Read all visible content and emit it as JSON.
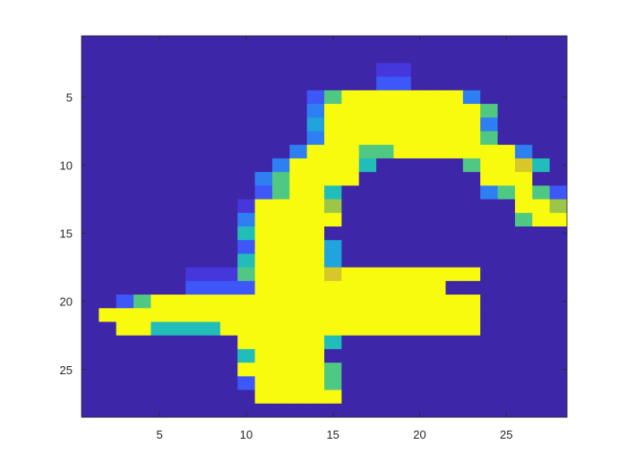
{
  "chart_data": {
    "type": "heatmap",
    "title": "",
    "xlabel": "",
    "ylabel": "",
    "x_range": [
      1,
      28
    ],
    "y_range": [
      1,
      28
    ],
    "x_direction": "normal",
    "y_direction": "reversed",
    "x_ticks": [
      5,
      10,
      15,
      20,
      25
    ],
    "y_ticks": [
      5,
      10,
      15,
      20,
      25
    ],
    "x_tick_labels": [
      "5",
      "10",
      "15",
      "20",
      "25"
    ],
    "y_tick_labels": [
      "5",
      "10",
      "15",
      "20",
      "25"
    ],
    "grid": false,
    "colormap": "parula",
    "value_range": [
      0,
      1
    ],
    "colors": {
      "background_low": "#3e26a8",
      "axis": "#262626"
    },
    "values": [
      "0000000000000000000000000000",
      "0000000000000000000000000000",
      "0000000000000000011000000000",
      "0000000000000000022000000000",
      "0000000000000269999999300000",
      "0000000000000399999999960000",
      "0000000000000499999999930000",
      "0000000000000399999999960000",
      "0000000000003999669999999300",
      "0000000000039999500000699850",
      "0000000000369999000000099900",
      "0000000000269950000000036962",
      "0000000001999970000000000997",
      "0000000003999990000000000699",
      "0000000005999900000000000000",
      "0000000002999940000000000000",
      "0000000005999940000000000000",
      "0000001116999989999999900000",
      "0000002222999999999990000000",
      "0026999999999999999999900000",
      "0999999999999999999999900000",
      "0099555599999999999999900000",
      "0000000009999950000000000000",
      "0000000005999900000000000000",
      "0000000009999960000000000000",
      "0000000002999960000000000000",
      "0000000000999990000000000000",
      "0000000000000000000000000000"
    ]
  }
}
